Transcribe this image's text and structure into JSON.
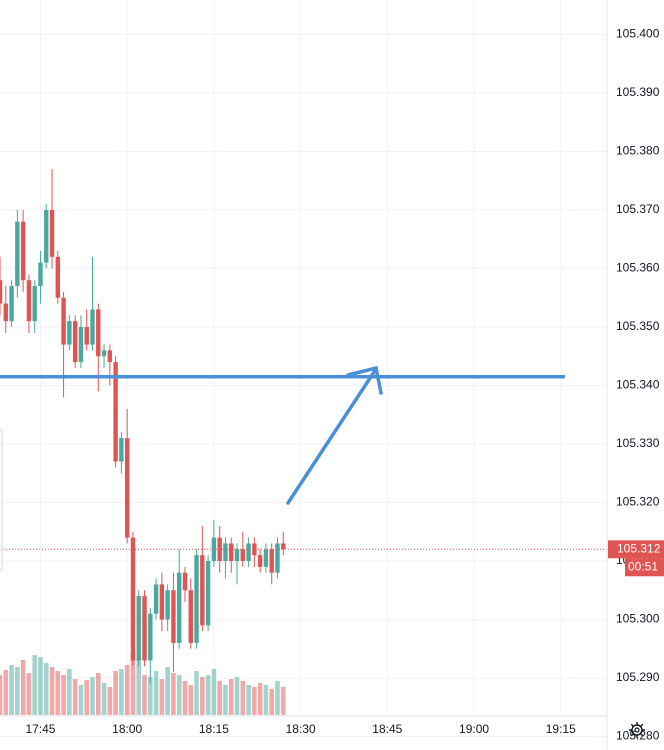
{
  "chart_data": {
    "type": "candlestick",
    "x": [
      "17:38",
      "17:39",
      "17:40",
      "17:41",
      "17:42",
      "17:43",
      "17:44",
      "17:45",
      "17:46",
      "17:47",
      "17:48",
      "17:49",
      "17:50",
      "17:51",
      "17:52",
      "17:53",
      "17:54",
      "17:55",
      "17:56",
      "17:57",
      "17:58",
      "17:59",
      "18:00",
      "18:01",
      "18:02",
      "18:03",
      "18:04",
      "18:05",
      "18:06",
      "18:07",
      "18:08",
      "18:09",
      "18:10",
      "18:11",
      "18:12",
      "18:13",
      "18:14",
      "18:15",
      "18:16",
      "18:17",
      "18:18",
      "18:19",
      "18:20",
      "18:21",
      "18:22",
      "18:23",
      "18:24",
      "18:25",
      "18:26",
      "18:27"
    ],
    "open": [
      105.358,
      105.354,
      105.351,
      105.357,
      105.368,
      105.358,
      105.351,
      105.357,
      105.361,
      105.37,
      105.362,
      105.355,
      105.347,
      105.351,
      105.344,
      105.35,
      105.347,
      105.353,
      105.345,
      105.346,
      105.344,
      105.327,
      105.331,
      105.314,
      105.293,
      105.304,
      105.293,
      105.301,
      105.306,
      105.3,
      105.305,
      105.296,
      105.308,
      105.305,
      105.296,
      105.311,
      105.299,
      105.31,
      105.314,
      105.31,
      105.313,
      105.31,
      105.312,
      105.31,
      105.313,
      105.311,
      105.309,
      105.312,
      105.308,
      105.313
    ],
    "high": [
      105.362,
      105.357,
      105.358,
      105.37,
      105.37,
      105.359,
      105.358,
      105.363,
      105.371,
      105.377,
      105.363,
      105.356,
      105.352,
      105.352,
      105.352,
      105.353,
      105.362,
      105.354,
      105.347,
      105.347,
      105.345,
      105.332,
      105.336,
      105.315,
      105.305,
      105.305,
      105.302,
      105.307,
      105.308,
      105.306,
      105.308,
      105.312,
      105.309,
      105.307,
      105.312,
      105.316,
      105.311,
      105.317,
      105.316,
      105.314,
      105.314,
      105.313,
      105.315,
      105.314,
      105.314,
      105.312,
      105.313,
      105.313,
      105.314,
      105.315
    ],
    "low": [
      105.352,
      105.349,
      105.35,
      105.355,
      105.356,
      105.349,
      105.349,
      105.354,
      105.36,
      105.36,
      105.354,
      105.338,
      105.346,
      105.343,
      105.343,
      105.346,
      105.346,
      105.339,
      105.343,
      105.34,
      105.326,
      105.325,
      105.313,
      105.292,
      105.292,
      105.292,
      105.289,
      105.3,
      105.298,
      105.298,
      105.291,
      105.295,
      105.303,
      105.295,
      105.295,
      105.298,
      105.298,
      105.309,
      105.308,
      105.307,
      105.308,
      105.306,
      105.309,
      105.309,
      105.309,
      105.308,
      105.308,
      105.306,
      105.307,
      105.311
    ],
    "close": [
      105.354,
      105.351,
      105.357,
      105.368,
      105.358,
      105.351,
      105.357,
      105.361,
      105.37,
      105.362,
      105.355,
      105.347,
      105.351,
      105.344,
      105.35,
      105.347,
      105.353,
      105.345,
      105.346,
      105.344,
      105.327,
      105.331,
      105.314,
      105.293,
      105.304,
      105.293,
      105.301,
      105.306,
      105.3,
      105.305,
      105.296,
      105.308,
      105.305,
      105.296,
      105.311,
      105.299,
      105.31,
      105.314,
      105.31,
      105.313,
      105.31,
      105.312,
      105.31,
      105.313,
      105.311,
      105.309,
      105.312,
      105.308,
      105.313,
      105.312
    ],
    "volume": [
      40,
      45,
      50,
      48,
      55,
      42,
      60,
      58,
      52,
      48,
      44,
      40,
      46,
      36,
      30,
      35,
      38,
      42,
      32,
      28,
      44,
      46,
      50,
      62,
      55,
      40,
      38,
      44,
      36,
      48,
      42,
      40,
      34,
      30,
      44,
      38,
      40,
      46,
      34,
      30,
      36,
      38,
      34,
      30,
      28,
      32,
      30,
      26,
      34,
      28
    ],
    "xlim": [
      "17:38",
      "19:23"
    ],
    "xticks": [
      "17:45",
      "18:00",
      "18:15",
      "18:30",
      "18:45",
      "19:00",
      "19:15"
    ],
    "ylim": [
      105.2835,
      105.4059
    ],
    "yticks": [
      {
        "value": 105.4,
        "label": "105.400"
      },
      {
        "value": 105.39,
        "label": "105.390"
      },
      {
        "value": 105.38,
        "label": "105.380"
      },
      {
        "value": 105.37,
        "label": "105.370"
      },
      {
        "value": 105.36,
        "label": "105.360"
      },
      {
        "value": 105.35,
        "label": "105.350"
      },
      {
        "value": 105.34,
        "label": "105.340"
      },
      {
        "value": 105.33,
        "label": "105.330"
      },
      {
        "value": 105.32,
        "label": "105.320"
      },
      {
        "value": 105.31,
        "label": "105.310"
      },
      {
        "value": 105.3,
        "label": "105.300"
      },
      {
        "value": 105.29,
        "label": "105.290"
      },
      {
        "value": 105.28,
        "label": "105.280"
      }
    ],
    "grid": true,
    "up_color": "#4aa89c",
    "down_color": "#e05454",
    "hline": 105.3415,
    "hline_color": "#4a90d9",
    "last_price": 105.312,
    "countdown": "00:51"
  }
}
